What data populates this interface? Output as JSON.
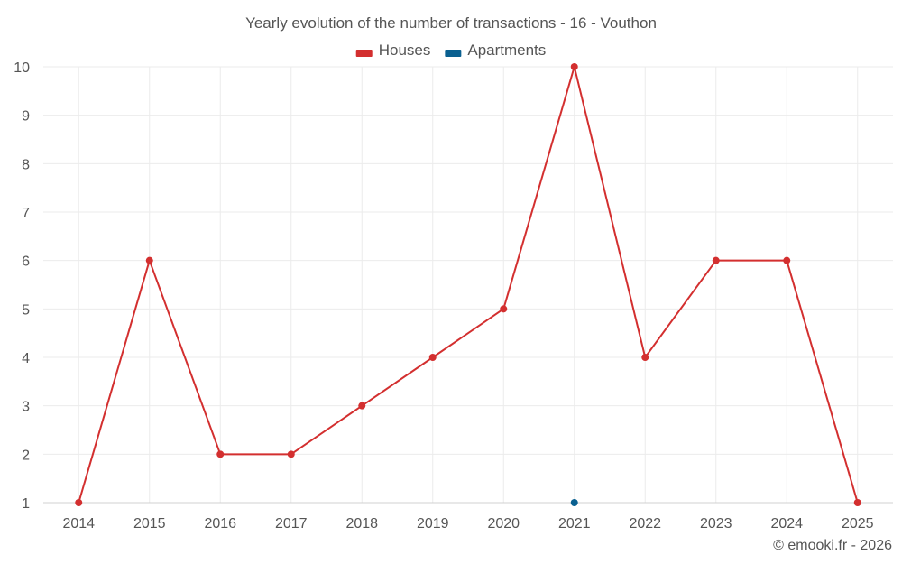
{
  "credit": "© emooki.fr - 2026",
  "chart_data": {
    "type": "line",
    "title": "Yearly evolution of the number of transactions - 16 - Vouthon",
    "xlabel": "",
    "ylabel": "",
    "categories": [
      "2014",
      "2015",
      "2016",
      "2017",
      "2018",
      "2019",
      "2020",
      "2021",
      "2022",
      "2023",
      "2024",
      "2025"
    ],
    "ylim": [
      1,
      10
    ],
    "yticks": [
      1,
      2,
      3,
      4,
      5,
      6,
      7,
      8,
      9,
      10
    ],
    "grid": true,
    "legend_position": "top-center",
    "series": [
      {
        "name": "Houses",
        "color": "#d32f2f",
        "values": [
          1,
          6,
          2,
          2,
          3,
          4,
          5,
          10,
          4,
          6,
          6,
          1
        ]
      },
      {
        "name": "Apartments",
        "color": "#0a6090",
        "values": [
          null,
          null,
          null,
          null,
          null,
          null,
          null,
          1,
          null,
          null,
          null,
          null
        ]
      }
    ]
  }
}
